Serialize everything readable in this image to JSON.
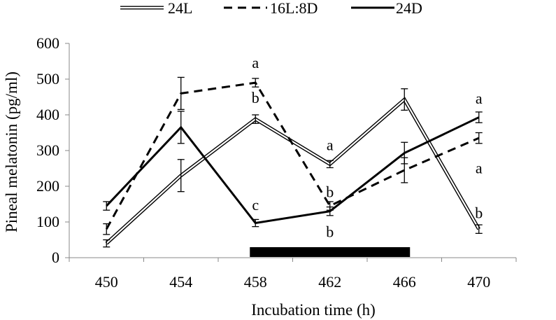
{
  "chart_data": {
    "type": "line",
    "xlabel": "Incubation time (h)",
    "ylabel": "Pineal melatonin (pg/ml)",
    "x": [
      450,
      454,
      458,
      462,
      466,
      470
    ],
    "ylim": [
      0,
      600
    ],
    "yticks": [
      0,
      100,
      200,
      300,
      400,
      500,
      600
    ],
    "grid": "none",
    "legend_position": "top",
    "series": [
      {
        "name": "24L",
        "style": "double",
        "color": "#000000",
        "values": [
          40,
          230,
          388,
          262,
          443,
          80
        ],
        "errors": [
          10,
          45,
          12,
          10,
          30,
          12
        ]
      },
      {
        "name": "16L:8D",
        "style": "dashed",
        "color": "#000000",
        "values": [
          80,
          460,
          490,
          145,
          245,
          335
        ],
        "errors": [
          15,
          45,
          12,
          12,
          35,
          15
        ]
      },
      {
        "name": "24D",
        "style": "solid",
        "color": "#000000",
        "values": [
          145,
          365,
          97,
          130,
          293,
          393
        ],
        "errors": [
          12,
          45,
          10,
          12,
          30,
          15
        ]
      }
    ],
    "dark_period_bar": {
      "x_start": 457.7,
      "x_end": 466.3,
      "color": "#000000"
    },
    "annotations": [
      {
        "text": "a",
        "x": 458,
        "y": 545
      },
      {
        "text": "b",
        "x": 458,
        "y": 447
      },
      {
        "text": "c",
        "x": 458,
        "y": 147
      },
      {
        "text": "a",
        "x": 462,
        "y": 315
      },
      {
        "text": "b",
        "x": 462,
        "y": 183
      },
      {
        "text": "b",
        "x": 462,
        "y": 72
      },
      {
        "text": "a",
        "x": 470,
        "y": 445
      },
      {
        "text": "a",
        "x": 470,
        "y": 250
      },
      {
        "text": "b",
        "x": 470,
        "y": 125
      }
    ]
  }
}
